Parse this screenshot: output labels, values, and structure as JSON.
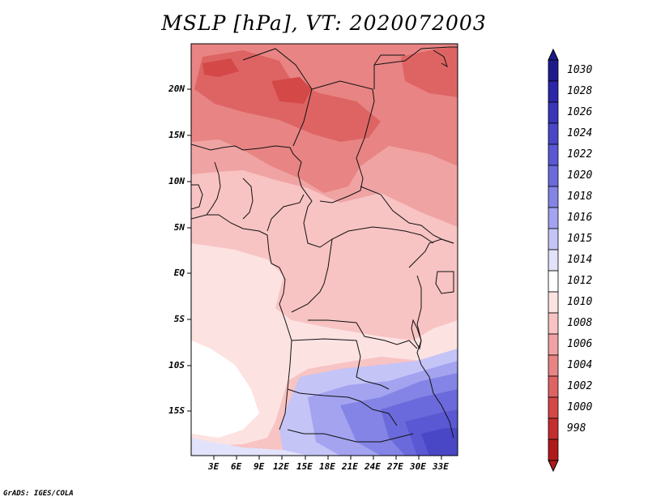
{
  "title": "MSLP [hPa], VT: 2020072003",
  "footer": "GrADS: IGES/COLA",
  "lat_labels": [
    "20N",
    "15N",
    "10N",
    "5N",
    "EQ",
    "5S",
    "10S",
    "15S"
  ],
  "lon_labels": [
    "3E",
    "6E",
    "9E",
    "12E",
    "15E",
    "18E",
    "21E",
    "24E",
    "27E",
    "30E",
    "33E"
  ],
  "colorbar": {
    "labels": [
      "1030",
      "1028",
      "1026",
      "1024",
      "1022",
      "1020",
      "1018",
      "1016",
      "1015",
      "1014",
      "1012",
      "1010",
      "1008",
      "1006",
      "1004",
      "1002",
      "1000",
      "998"
    ],
    "colors": [
      "#1f1a8c",
      "#2b27a8",
      "#3a36b8",
      "#4a47c6",
      "#5a58d2",
      "#6b6adc",
      "#8484e6",
      "#a3a3f0",
      "#c4c4f7",
      "#e2e2fb",
      "#ffffff",
      "#fde2e2",
      "#f8c3c3",
      "#f0a3a3",
      "#e88484",
      "#de6464",
      "#d44848",
      "#c42e2e",
      "#b01a1a"
    ]
  },
  "map": {
    "region": "Central Africa",
    "variable": "Mean sea level pressure",
    "units": "hPa"
  }
}
